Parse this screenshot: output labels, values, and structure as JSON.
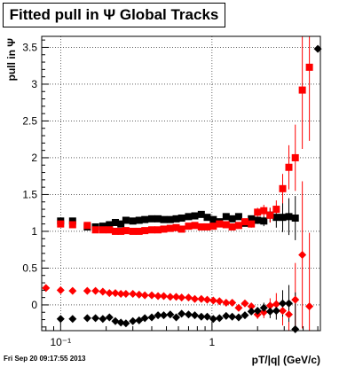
{
  "header": {
    "title": "Fitted pull in Ψ   Global Tracks"
  },
  "footer": {
    "timestamp": "Fri Sep 20 09:17:55 2013"
  },
  "chart_data": {
    "type": "scatter",
    "title": "Fitted pull in Ψ   Global Tracks",
    "xlabel": "pT/|q| (GeV/c)",
    "ylabel": "pull in Ψ",
    "x_scale": "log",
    "xlim": [
      0.075,
      5.2
    ],
    "ylim": [
      -0.35,
      3.65
    ],
    "x_ticks": [
      {
        "value": 0.1,
        "label": "10⁻¹"
      },
      {
        "value": 1,
        "label": "1"
      }
    ],
    "y_ticks": [
      {
        "value": 0,
        "label": "0"
      },
      {
        "value": 0.5,
        "label": "0.5"
      },
      {
        "value": 1,
        "label": "1"
      },
      {
        "value": 1.5,
        "label": "1.5"
      },
      {
        "value": 2,
        "label": "2"
      },
      {
        "value": 2.5,
        "label": "2.5"
      },
      {
        "value": 3,
        "label": "3"
      },
      {
        "value": 3.5,
        "label": "3.5"
      }
    ],
    "grid": true,
    "series": [
      {
        "color": "#000000",
        "marker": "square",
        "points": [
          [
            0.1,
            1.14
          ],
          [
            0.12,
            1.14
          ],
          [
            0.15,
            1.06
          ],
          [
            0.17,
            1.06
          ],
          [
            0.19,
            1.07
          ],
          [
            0.21,
            1.09
          ],
          [
            0.23,
            1.12
          ],
          [
            0.25,
            1.1
          ],
          [
            0.27,
            1.15
          ],
          [
            0.3,
            1.14
          ],
          [
            0.33,
            1.15
          ],
          [
            0.36,
            1.16
          ],
          [
            0.4,
            1.17
          ],
          [
            0.44,
            1.17
          ],
          [
            0.48,
            1.16
          ],
          [
            0.53,
            1.16
          ],
          [
            0.58,
            1.17
          ],
          [
            0.63,
            1.18
          ],
          [
            0.7,
            1.2
          ],
          [
            0.77,
            1.21
          ],
          [
            0.85,
            1.23
          ],
          [
            0.93,
            1.19
          ],
          [
            1.02,
            1.16
          ],
          [
            1.12,
            1.13
          ],
          [
            1.24,
            1.2
          ],
          [
            1.36,
            1.17
          ],
          [
            1.5,
            1.2
          ],
          [
            1.65,
            1.11
          ],
          [
            1.82,
            1.17
          ],
          [
            2.0,
            1.15
          ],
          [
            2.2,
            1.14
          ],
          [
            2.42,
            1.22
          ],
          [
            2.66,
            1.19
          ],
          [
            2.93,
            1.19
          ],
          [
            3.22,
            1.2
          ],
          [
            3.55,
            1.18
          ]
        ],
        "errors": [
          0.02,
          0.02,
          0.02,
          0.02,
          0.02,
          0.02,
          0.02,
          0.02,
          0.02,
          0.02,
          0.02,
          0.02,
          0.02,
          0.02,
          0.02,
          0.02,
          0.02,
          0.02,
          0.02,
          0.02,
          0.02,
          0.02,
          0.02,
          0.02,
          0.03,
          0.03,
          0.03,
          0.04,
          0.04,
          0.05,
          0.07,
          0.1,
          0.14,
          0.2,
          0.25,
          0.3
        ]
      },
      {
        "color": "#ff0000",
        "marker": "square",
        "points": [
          [
            0.1,
            1.1
          ],
          [
            0.12,
            1.09
          ],
          [
            0.15,
            1.08
          ],
          [
            0.17,
            1.02
          ],
          [
            0.19,
            1.02
          ],
          [
            0.21,
            1.02
          ],
          [
            0.23,
            1.0
          ],
          [
            0.25,
            1.0
          ],
          [
            0.27,
            1.01
          ],
          [
            0.3,
            1.0
          ],
          [
            0.33,
            1.0
          ],
          [
            0.36,
            1.01
          ],
          [
            0.4,
            1.02
          ],
          [
            0.44,
            1.02
          ],
          [
            0.48,
            1.03
          ],
          [
            0.53,
            1.04
          ],
          [
            0.58,
            1.05
          ],
          [
            0.63,
            1.03
          ],
          [
            0.7,
            1.07
          ],
          [
            0.77,
            1.08
          ],
          [
            0.85,
            1.06
          ],
          [
            0.93,
            1.06
          ],
          [
            1.02,
            1.07
          ],
          [
            1.12,
            1.1
          ],
          [
            1.24,
            1.09
          ],
          [
            1.36,
            1.06
          ],
          [
            1.5,
            1.08
          ],
          [
            1.65,
            1.13
          ],
          [
            1.82,
            1.1
          ],
          [
            2.0,
            1.26
          ],
          [
            2.2,
            1.28
          ],
          [
            2.42,
            1.22
          ],
          [
            2.66,
            1.3
          ],
          [
            2.93,
            1.58
          ],
          [
            3.22,
            1.87
          ],
          [
            3.55,
            2.0
          ],
          [
            3.95,
            2.92
          ],
          [
            4.4,
            3.23
          ]
        ],
        "errors": [
          0.02,
          0.02,
          0.02,
          0.02,
          0.02,
          0.02,
          0.02,
          0.02,
          0.02,
          0.02,
          0.02,
          0.02,
          0.02,
          0.02,
          0.02,
          0.02,
          0.02,
          0.02,
          0.02,
          0.02,
          0.02,
          0.02,
          0.02,
          0.02,
          0.03,
          0.03,
          0.03,
          0.04,
          0.05,
          0.06,
          0.08,
          0.1,
          0.12,
          0.2,
          0.3,
          0.45,
          0.8,
          1.0
        ]
      },
      {
        "color": "#ff0000",
        "marker": "diamond",
        "points": [
          [
            0.08,
            0.23
          ],
          [
            0.1,
            0.2
          ],
          [
            0.12,
            0.19
          ],
          [
            0.15,
            0.19
          ],
          [
            0.17,
            0.19
          ],
          [
            0.19,
            0.18
          ],
          [
            0.21,
            0.16
          ],
          [
            0.23,
            0.16
          ],
          [
            0.25,
            0.15
          ],
          [
            0.27,
            0.15
          ],
          [
            0.3,
            0.15
          ],
          [
            0.33,
            0.14
          ],
          [
            0.36,
            0.13
          ],
          [
            0.4,
            0.13
          ],
          [
            0.44,
            0.12
          ],
          [
            0.48,
            0.12
          ],
          [
            0.53,
            0.11
          ],
          [
            0.58,
            0.11
          ],
          [
            0.63,
            0.1
          ],
          [
            0.7,
            0.1
          ],
          [
            0.77,
            0.08
          ],
          [
            0.85,
            0.08
          ],
          [
            0.93,
            0.07
          ],
          [
            1.02,
            0.06
          ],
          [
            1.12,
            0.05
          ],
          [
            1.24,
            0.03
          ],
          [
            1.36,
            0.03
          ],
          [
            1.5,
            -0.04
          ],
          [
            1.65,
            0.02
          ],
          [
            1.82,
            -0.02
          ],
          [
            2.0,
            -0.13
          ],
          [
            2.2,
            -0.1
          ],
          [
            2.42,
            -0.01
          ],
          [
            2.66,
            0.01
          ],
          [
            2.93,
            -0.08
          ],
          [
            3.22,
            -0.13
          ],
          [
            3.55,
            0.07
          ],
          [
            3.95,
            0.68
          ],
          [
            4.4,
            -0.02
          ]
        ],
        "errors": [
          0.02,
          0.02,
          0.02,
          0.02,
          0.02,
          0.02,
          0.02,
          0.02,
          0.02,
          0.02,
          0.02,
          0.02,
          0.02,
          0.02,
          0.02,
          0.02,
          0.02,
          0.02,
          0.02,
          0.02,
          0.02,
          0.02,
          0.02,
          0.02,
          0.02,
          0.03,
          0.03,
          0.04,
          0.04,
          0.05,
          0.06,
          0.08,
          0.1,
          0.15,
          0.2,
          0.3,
          0.5,
          1.0,
          1.0
        ]
      },
      {
        "color": "#000000",
        "marker": "diamond",
        "points": [
          [
            0.1,
            -0.19
          ],
          [
            0.12,
            -0.19
          ],
          [
            0.15,
            -0.18
          ],
          [
            0.17,
            -0.18
          ],
          [
            0.19,
            -0.19
          ],
          [
            0.21,
            -0.17
          ],
          [
            0.23,
            -0.22
          ],
          [
            0.25,
            -0.24
          ],
          [
            0.27,
            -0.25
          ],
          [
            0.3,
            -0.22
          ],
          [
            0.33,
            -0.21
          ],
          [
            0.36,
            -0.18
          ],
          [
            0.4,
            -0.17
          ],
          [
            0.44,
            -0.14
          ],
          [
            0.48,
            -0.14
          ],
          [
            0.53,
            -0.13
          ],
          [
            0.58,
            -0.17
          ],
          [
            0.63,
            -0.12
          ],
          [
            0.7,
            -0.13
          ],
          [
            0.77,
            -0.14
          ],
          [
            0.85,
            -0.16
          ],
          [
            0.93,
            -0.16
          ],
          [
            1.02,
            -0.19
          ],
          [
            1.12,
            -0.18
          ],
          [
            1.24,
            -0.15
          ],
          [
            1.36,
            -0.16
          ],
          [
            1.5,
            -0.17
          ],
          [
            1.65,
            -0.14
          ],
          [
            1.82,
            -0.09
          ],
          [
            2.0,
            -0.08
          ],
          [
            2.2,
            -0.04
          ],
          [
            2.42,
            -0.09
          ],
          [
            2.66,
            -0.08
          ],
          [
            2.93,
            0.02
          ],
          [
            3.22,
            0.02
          ],
          [
            3.55,
            -0.33
          ],
          [
            5.0,
            3.48
          ]
        ],
        "errors": [
          0.02,
          0.02,
          0.02,
          0.02,
          0.02,
          0.02,
          0.02,
          0.02,
          0.02,
          0.02,
          0.02,
          0.02,
          0.02,
          0.02,
          0.02,
          0.02,
          0.02,
          0.02,
          0.02,
          0.02,
          0.02,
          0.02,
          0.02,
          0.02,
          0.03,
          0.03,
          0.03,
          0.04,
          0.04,
          0.05,
          0.07,
          0.09,
          0.12,
          0.18,
          0.25,
          0.5,
          0.0
        ]
      }
    ]
  }
}
